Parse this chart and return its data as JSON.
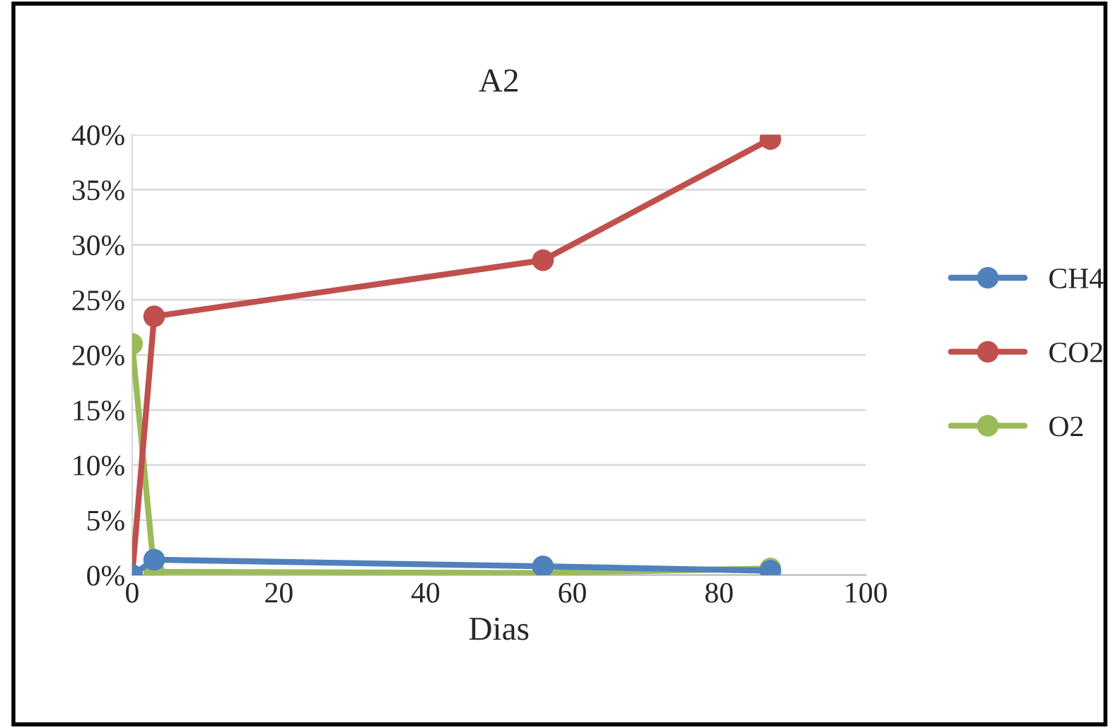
{
  "chart_data": {
    "type": "line",
    "title": "A2",
    "xlabel": "Dias",
    "series": [
      {
        "name": "CH4",
        "color": "#4f81bd",
        "x": [
          0,
          3,
          56,
          87
        ],
        "values": [
          0,
          1.4,
          0.8,
          0.4
        ]
      },
      {
        "name": "CO2",
        "color": "#c0504d",
        "x": [
          0,
          3,
          56,
          87
        ],
        "values": [
          0,
          23.5,
          28.6,
          39.6
        ]
      },
      {
        "name": "O2",
        "color": "#9bbb59",
        "x": [
          0,
          3,
          56,
          87
        ],
        "values": [
          21,
          0.3,
          0.2,
          0.6
        ]
      }
    ],
    "xlim": [
      0,
      100
    ],
    "xticks": [
      0,
      20,
      40,
      60,
      80,
      100
    ],
    "ylim": [
      0,
      40
    ],
    "yticks": [
      {
        "value": 0,
        "label": "0%"
      },
      {
        "value": 5,
        "label": "5%"
      },
      {
        "value": 10,
        "label": "10%"
      },
      {
        "value": 15,
        "label": "15%"
      },
      {
        "value": 20,
        "label": "20%"
      },
      {
        "value": 25,
        "label": "25%"
      },
      {
        "value": 30,
        "label": "30%"
      },
      {
        "value": 35,
        "label": "35%"
      },
      {
        "value": 40,
        "label": "40%"
      }
    ],
    "grid": "y",
    "legend": "right",
    "marker": "circle",
    "line_style": "solid"
  }
}
